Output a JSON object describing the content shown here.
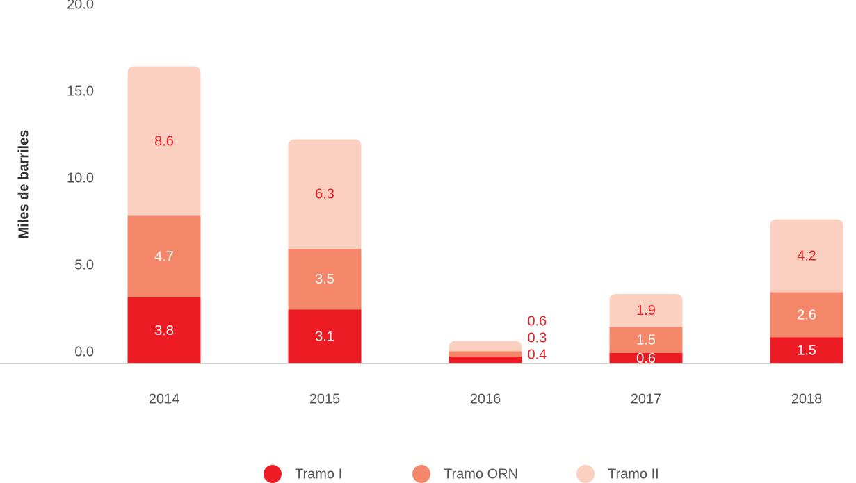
{
  "chart_data": {
    "type": "stacked_bar",
    "ylabel": "Miles de barriles",
    "categories": [
      "2014",
      "2015",
      "2016",
      "2017",
      "2018"
    ],
    "series": [
      {
        "name": "Tramo I",
        "color": "#ed1c24",
        "values": [
          3.8,
          3.1,
          0.4,
          0.6,
          1.5
        ]
      },
      {
        "name": "Tramo ORN",
        "color": "#f4876a",
        "values": [
          4.7,
          3.5,
          0.3,
          1.5,
          2.6
        ]
      },
      {
        "name": "Tramo II",
        "color": "#fbd0c0",
        "values": [
          8.6,
          6.3,
          0.6,
          1.9,
          4.2
        ]
      }
    ],
    "ylim": [
      0,
      20
    ],
    "yticks": [
      {
        "value": 0,
        "label": "0.0"
      },
      {
        "value": 5,
        "label": "5.0"
      },
      {
        "value": 10,
        "label": "10.0"
      },
      {
        "value": 15,
        "label": "15.0"
      },
      {
        "value": 20,
        "label": "20.0"
      }
    ],
    "legend": "bottom"
  }
}
